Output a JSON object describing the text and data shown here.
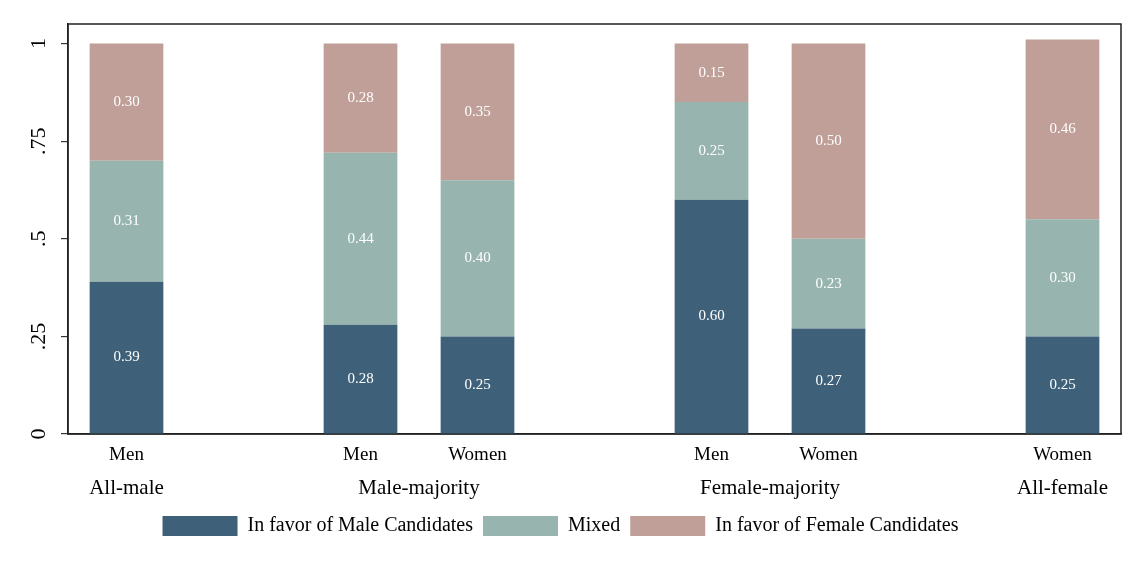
{
  "chart_data": {
    "type": "bar",
    "stacked": true,
    "categories": [
      "Men",
      null,
      "Men",
      "Women",
      null,
      "Men",
      "Women",
      null,
      "Women"
    ],
    "series": [
      {
        "name": "In favor of Male Candidates",
        "color": "#3e6179",
        "values": [
          0.39,
          null,
          0.28,
          0.25,
          null,
          0.6,
          0.27,
          null,
          0.25
        ],
        "value_labels": [
          "0.39",
          null,
          "0.28",
          "0.25",
          null,
          "0.60",
          "0.27",
          null,
          "0.25"
        ]
      },
      {
        "name": "Mixed",
        "color": "#97b5ae",
        "values": [
          0.31,
          null,
          0.44,
          0.4,
          null,
          0.25,
          0.23,
          null,
          0.3
        ],
        "value_labels": [
          "0.31",
          null,
          "0.44",
          "0.40",
          null,
          "0.25",
          "0.23",
          null,
          "0.30"
        ]
      },
      {
        "name": "In favor of Female Candidates",
        "color": "#bf9f98",
        "values": [
          0.3,
          null,
          0.28,
          0.35,
          null,
          0.15,
          0.5,
          null,
          0.46
        ],
        "value_labels": [
          "0.30",
          null,
          "0.28",
          "0.35",
          null,
          "0.15",
          "0.50",
          null,
          "0.46"
        ]
      }
    ],
    "ylim": [
      0,
      1.05
    ],
    "yticks": [
      0,
      {
        "value": 0.25,
        "label": ".25"
      },
      {
        "value": 0.5,
        "label": ".5"
      },
      {
        "value": 0.75,
        "label": ".75"
      },
      1
    ],
    "annotations": [
      "All-male",
      "Male-majority",
      "Female-majority",
      "All-female"
    ],
    "legend": "bottom"
  }
}
